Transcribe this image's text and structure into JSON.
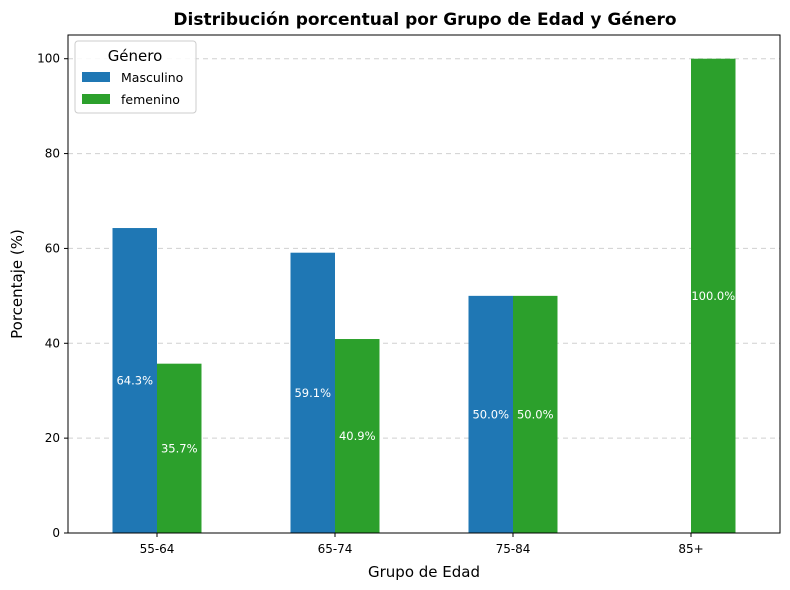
{
  "chart_data": {
    "type": "bar",
    "title": "Distribución porcentual por Grupo de Edad y Género",
    "xlabel": "Grupo de Edad",
    "ylabel": "Porcentaje (%)",
    "categories": [
      "55-64",
      "65-74",
      "75-84",
      "85+"
    ],
    "series": [
      {
        "name": "Masculino",
        "color": "#1f77b4",
        "values": [
          64.3,
          59.1,
          50.0,
          0.0
        ]
      },
      {
        "name": "femenino",
        "color": "#2ca02c",
        "values": [
          35.7,
          40.9,
          50.0,
          100.0
        ]
      }
    ],
    "data_labels": [
      [
        "64.3%",
        "59.1%",
        "50.0%",
        ""
      ],
      [
        "35.7%",
        "40.9%",
        "50.0%",
        "100.0%"
      ]
    ],
    "ylim": [
      0,
      105
    ],
    "yticks": [
      "0",
      "20",
      "40",
      "60",
      "80",
      "100"
    ],
    "grid": "y-dashed",
    "legend": {
      "title": "Género",
      "placement": "top-left"
    }
  }
}
